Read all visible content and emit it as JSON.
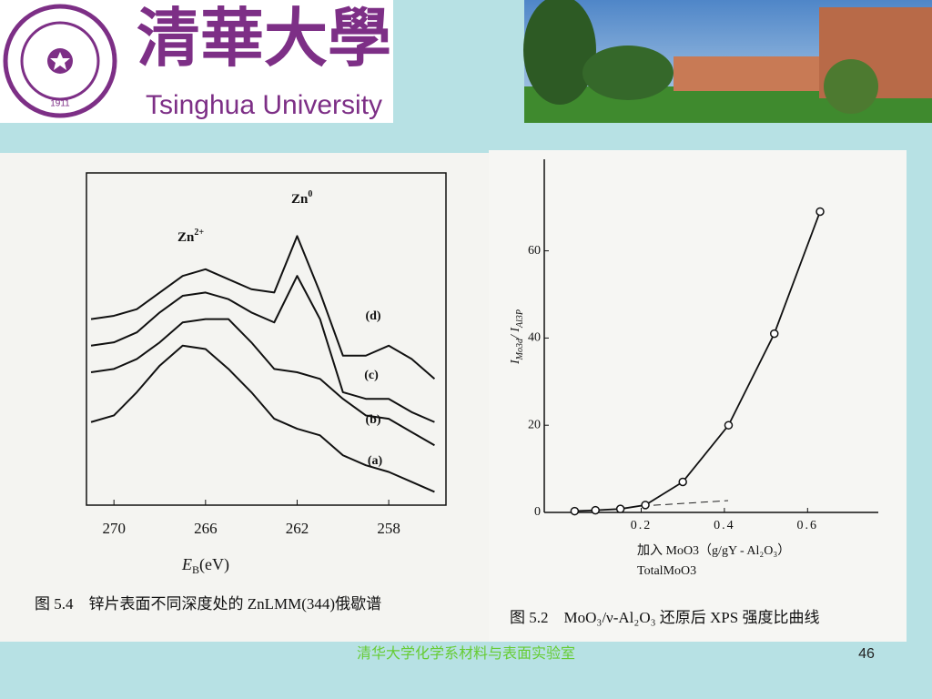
{
  "header": {
    "university_cn": "清華大學",
    "university_en": "Tsinghua University",
    "seal_year": "1911"
  },
  "chart_data": [
    {
      "type": "line",
      "x": [
        271,
        270,
        269,
        268,
        267,
        266,
        265,
        264,
        263,
        262,
        261,
        260,
        259,
        258,
        257,
        256
      ],
      "xlim": [
        271.2,
        255.5
      ],
      "ylim": [
        0,
        100
      ],
      "xticks": [
        270,
        266,
        262,
        258
      ],
      "x_label": {
        "symbol": "E",
        "sub": "B",
        "unit": "(eV)"
      },
      "annotations": [
        {
          "text": "Zn",
          "sup": "2+"
        },
        {
          "text": "Zn",
          "sup": "0"
        }
      ],
      "series": [
        {
          "name": "(a)",
          "color": "#111111",
          "values": [
            25,
            27,
            34,
            42,
            48,
            47,
            41,
            34,
            26,
            23,
            21,
            15,
            12,
            10,
            7,
            4
          ]
        },
        {
          "name": "(b)",
          "color": "#111111",
          "values": [
            40,
            41,
            44,
            49,
            55,
            56,
            56,
            49,
            41,
            40,
            38,
            32,
            27,
            26,
            22,
            18
          ]
        },
        {
          "name": "(c)",
          "color": "#111111",
          "values": [
            48,
            49,
            52,
            58,
            63,
            64,
            62,
            58,
            55,
            69,
            56,
            34,
            32,
            32,
            28,
            25
          ]
        },
        {
          "name": "(d)",
          "color": "#111111",
          "values": [
            56,
            57,
            59,
            64,
            69,
            71,
            68,
            65,
            64,
            81,
            64,
            45,
            45,
            48,
            44,
            38
          ]
        }
      ],
      "caption": "图 5.4　锌片表面不同深度处的 ZnLMM(344)俄歇谱"
    },
    {
      "type": "scatter",
      "x": [
        0.04,
        0.09,
        0.15,
        0.21,
        0.3,
        0.41,
        0.52,
        0.63
      ],
      "values": [
        0.3,
        0.5,
        0.8,
        1.7,
        7,
        20,
        41,
        69
      ],
      "color": "#111111",
      "line": true,
      "xlim": [
        -0.033,
        0.77
      ],
      "ylim": [
        0,
        81
      ],
      "xticks": [
        0.2,
        0.4,
        0.6
      ],
      "yticks": [
        0,
        20,
        40,
        60
      ],
      "x_label": "加入 MoO3（g/gY - Al₂O₃）",
      "x_label_2": "TotalMoO3",
      "y_label": [
        "I",
        "Mo3d",
        "/ I",
        "Al3P"
      ],
      "caption": "图 5.2　MoO₃/ν-Al₂O₃ 还原后 XPS 强度比曲线"
    }
  ],
  "footer": {
    "text": "清华大学化学系材料与表面实验室",
    "page": "46"
  }
}
